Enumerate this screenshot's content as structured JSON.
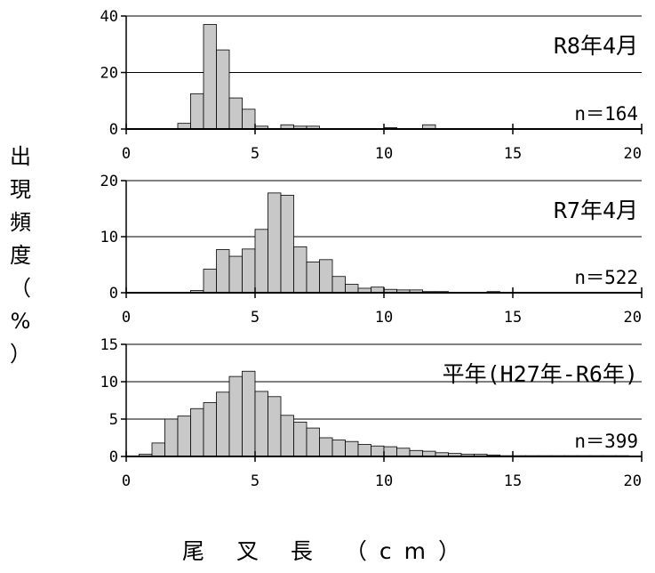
{
  "ylabel_chars": [
    "出",
    "現",
    "頻",
    "度",
    "（",
    "%",
    "）"
  ],
  "xlabel": "尾 叉 長 （cm）",
  "colors": {
    "bar": "#c8c8c8",
    "bar_stroke": "#000000",
    "axis": "#000000",
    "grid": "#000000"
  },
  "chart_data": [
    {
      "type": "bar",
      "title": "R8年4月",
      "annotation": "n＝164",
      "bin_width": 0.5,
      "x_start": 0,
      "values": [
        0,
        0,
        0,
        0,
        2,
        12.5,
        37,
        28,
        11,
        7,
        1,
        0,
        1.5,
        1,
        1,
        0,
        0,
        0,
        0,
        0,
        0.5,
        0,
        0,
        1.5,
        0,
        0,
        0,
        0,
        0,
        0,
        0,
        0,
        0,
        0,
        0,
        0,
        0,
        0,
        0,
        0
      ],
      "xlim": [
        0,
        20
      ],
      "ylim": [
        0,
        40
      ],
      "xticks": [
        0,
        5,
        10,
        15,
        20
      ],
      "yticks": [
        0,
        20,
        40
      ],
      "gridlines": [
        20
      ]
    },
    {
      "type": "bar",
      "title": "R7年4月",
      "annotation": "n＝522",
      "bin_width": 0.5,
      "x_start": 0,
      "values": [
        0,
        0,
        0,
        0,
        0,
        0.4,
        4.2,
        7.7,
        6.5,
        7.8,
        11.3,
        17.8,
        17.4,
        8.2,
        5.5,
        5.9,
        2.9,
        1.5,
        0.8,
        1.0,
        0.6,
        0.5,
        0.5,
        0.2,
        0.2,
        0,
        0,
        0,
        0.2,
        0,
        0,
        0,
        0,
        0,
        0,
        0,
        0,
        0,
        0,
        0
      ],
      "xlim": [
        0,
        20
      ],
      "ylim": [
        0,
        20
      ],
      "xticks": [
        0,
        5,
        10,
        15,
        20
      ],
      "yticks": [
        0,
        10,
        20
      ],
      "gridlines": [
        10
      ]
    },
    {
      "type": "bar",
      "title": "平年(H27年-R6年)",
      "annotation": "n＝399",
      "bin_width": 0.5,
      "x_start": 0,
      "values": [
        0,
        0.3,
        1.8,
        5.0,
        5.4,
        6.4,
        7.2,
        8.6,
        10.7,
        11.4,
        8.7,
        8.0,
        5.5,
        4.6,
        3.8,
        2.5,
        2.2,
        2.0,
        1.6,
        1.4,
        1.3,
        1.1,
        0.8,
        0.7,
        0.5,
        0.4,
        0.3,
        0.3,
        0.2,
        0.1,
        0.1,
        0.1,
        0.1,
        0.1,
        0.1,
        0.1,
        0.1,
        0.1,
        0.1,
        0
      ],
      "xlim": [
        0,
        20
      ],
      "ylim": [
        0,
        15
      ],
      "xticks": [
        0,
        5,
        10,
        15,
        20
      ],
      "yticks": [
        0,
        5,
        10,
        15
      ],
      "gridlines": [
        5,
        10
      ]
    }
  ]
}
